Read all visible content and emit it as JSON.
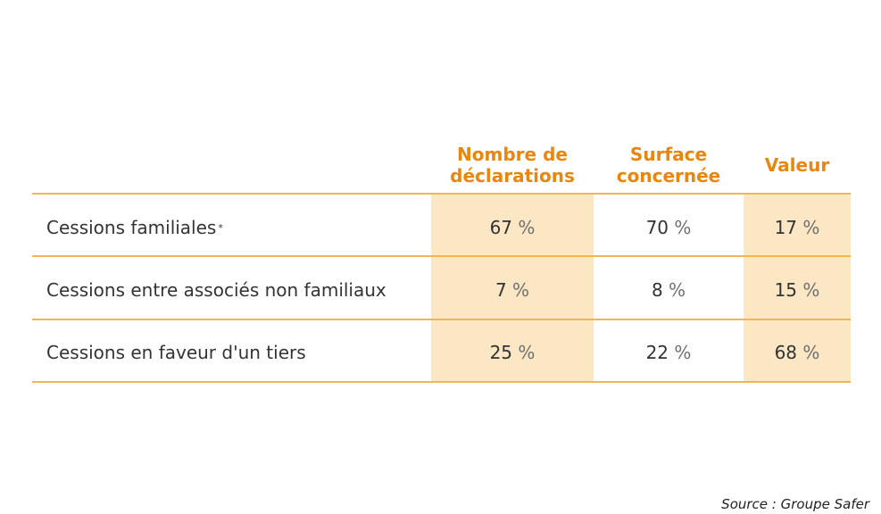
{
  "chart_data": {
    "type": "table",
    "columns": [
      "Nombre de déclarations",
      "Surface concernée",
      "Valeur"
    ],
    "column_headers": [
      [
        "Nombre de",
        "déclarations"
      ],
      [
        "Surface",
        "concernée"
      ],
      [
        "Valeur"
      ]
    ],
    "rows": [
      {
        "label": "Cessions familiales",
        "marker": "*",
        "values": [
          "67",
          "70",
          "17"
        ]
      },
      {
        "label": "Cessions entre associés non familiaux",
        "marker": "",
        "values": [
          "7",
          "8",
          "15"
        ]
      },
      {
        "label": "Cessions en faveur d'un tiers",
        "marker": "",
        "values": [
          "25",
          "22",
          "68"
        ]
      }
    ],
    "unit": "%",
    "highlighted_columns": [
      0,
      2
    ],
    "accent_color": "#e8860f",
    "highlight_color": "#fbe7c4",
    "rule_color": "#f0b656"
  },
  "source": "Source : Groupe Safer"
}
